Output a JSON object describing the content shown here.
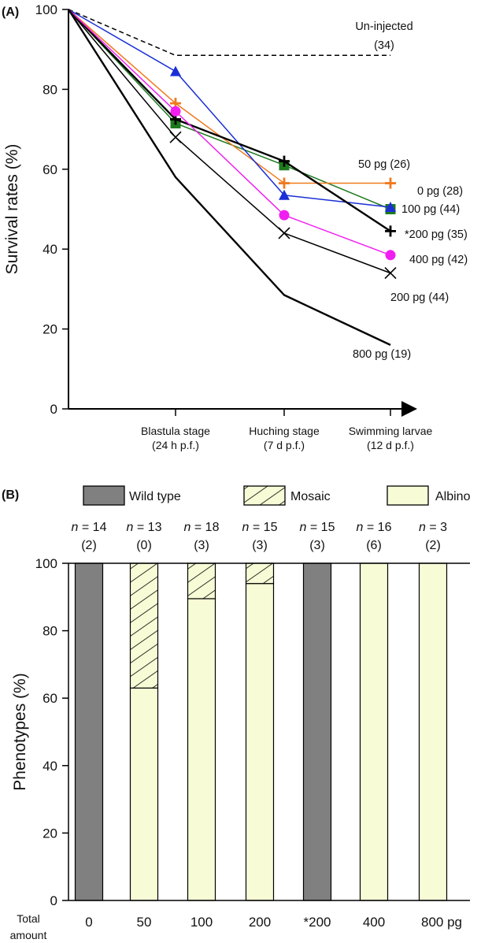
{
  "chart_data": [
    {
      "panel": "(A)",
      "type": "line",
      "ylabel": "Survival rates (%)",
      "ylim": [
        0,
        100
      ],
      "yticks": [
        0,
        20,
        40,
        60,
        80,
        100
      ],
      "categories": [
        "",
        "Blastula stage\n(24 h p.f.)",
        "Huching stage\n(7 d p.f.)",
        "Swimming larvae\n(12 d p.f.)"
      ],
      "grid": false,
      "series": [
        {
          "name": "Un-injected",
          "count": "(34)",
          "values": [
            100,
            88.5,
            88.5,
            88.5
          ],
          "color": "#000000",
          "marker": "none",
          "dashed": true
        },
        {
          "name": "50 pg (26)",
          "values": [
            100,
            71.5,
            61,
            50
          ],
          "color": "#1e7a1e",
          "marker": "square"
        },
        {
          "name": "0 pg (28)",
          "values": [
            100,
            76.5,
            56.5,
            56.5
          ],
          "color": "#f07a1e",
          "marker": "plus"
        },
        {
          "name": "100 pg (44)",
          "values": [
            100,
            84.5,
            53.5,
            50.5
          ],
          "color": "#1a2fd6",
          "marker": "triangle"
        },
        {
          "name": "*200 pg (35)",
          "values": [
            100,
            72.5,
            62,
            44.5
          ],
          "color": "#000000",
          "marker": "plus",
          "thick": true
        },
        {
          "name": "400 pg (42)",
          "values": [
            100,
            74.5,
            48.5,
            38.5
          ],
          "color": "#f01ef0",
          "marker": "circle"
        },
        {
          "name": "200 pg (44)",
          "values": [
            100,
            68,
            44,
            34
          ],
          "color": "#000000",
          "marker": "x"
        },
        {
          "name": "800 pg (19)",
          "values": [
            100,
            58,
            28.5,
            16
          ],
          "color": "#000000",
          "marker": "none",
          "thick": true
        }
      ]
    },
    {
      "panel": "(B)",
      "type": "bar",
      "stacked": true,
      "ylabel": "Phenotypes (%)",
      "ylim": [
        0,
        100
      ],
      "yticks": [
        0,
        20,
        40,
        60,
        80,
        100
      ],
      "xlabel": "Total amount",
      "categories": [
        "0",
        "50",
        "100",
        "200",
        "*200",
        "400",
        "800 pg"
      ],
      "n_labels": [
        "n = 14",
        "n = 13",
        "n = 18",
        "n = 15",
        "n = 15",
        "n = 16",
        "n = 3"
      ],
      "counts": [
        "(2)",
        "(0)",
        "(3)",
        "(3)",
        "(3)",
        "(6)",
        "(2)"
      ],
      "legend": {
        "placement": "top"
      },
      "series": [
        {
          "name": "Wild type",
          "color": "#808080",
          "values": [
            100,
            0,
            0,
            0,
            100,
            0,
            0
          ]
        },
        {
          "name": "Albino",
          "color": "#f7fbd6",
          "values": [
            0,
            63,
            89.5,
            94,
            0,
            100,
            100
          ]
        },
        {
          "name": "Mosaic",
          "color": "#f7fbd6",
          "pattern": "hatch",
          "values": [
            0,
            37,
            10.5,
            6,
            0,
            0,
            0
          ]
        }
      ],
      "legend_order": [
        "Wild type",
        "Mosaic",
        "Albino"
      ]
    }
  ]
}
